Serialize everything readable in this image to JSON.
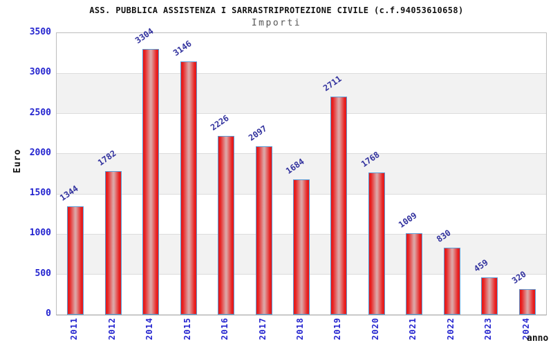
{
  "chart_data": {
    "type": "bar",
    "title": "ASS. PUBBLICA ASSISTENZA I SARRASTRIPROTEZIONE CIVILE (c.f.94053610658)",
    "subtitle": "Importi",
    "xlabel": "anno",
    "ylabel": "Euro",
    "categories": [
      "2011",
      "2012",
      "2014",
      "2015",
      "2016",
      "2017",
      "2018",
      "2019",
      "2020",
      "2021",
      "2022",
      "2023",
      "2024"
    ],
    "values": [
      1344,
      1782,
      3304,
      3146,
      2226,
      2097,
      1684,
      2711,
      1768,
      1009,
      830,
      459,
      320
    ],
    "ylim": [
      0,
      3500
    ],
    "yticks": [
      0,
      500,
      1000,
      1500,
      2000,
      2500,
      3000,
      3500
    ],
    "grid": true,
    "legend_position": "none",
    "band_stripes": [
      "#ffffff",
      "#f2f2f2"
    ]
  },
  "colors": {
    "bar_fill": "#e61717",
    "bar_fill_mid": "#dda4a4",
    "bar_border": "#5b9bd5",
    "tick_label": "#2525cf",
    "value_label": "#32329e",
    "gridline": "#dcdcdc",
    "title_text": "#111111",
    "subtitle_text": "#555555"
  }
}
